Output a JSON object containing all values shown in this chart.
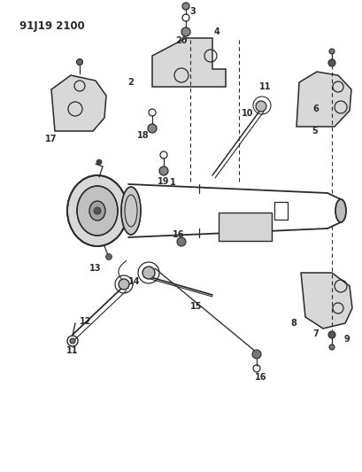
{
  "title_label": "91J19 2100",
  "bg_color": "#ffffff",
  "line_color": "#2a2a2a",
  "fig_width": 4.1,
  "fig_height": 5.33,
  "dpi": 100
}
